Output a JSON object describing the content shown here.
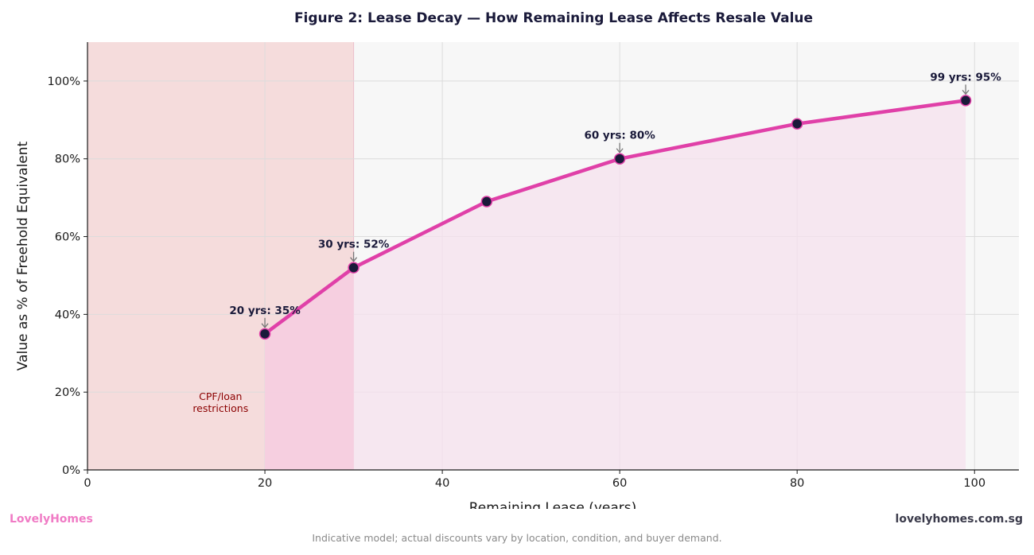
{
  "chart_data": {
    "type": "line",
    "title": "Figure 2: Lease Decay — How Remaining Lease Affects Resale Value",
    "xlabel": "Remaining Lease (years)",
    "ylabel": "Value as % of Freehold Equivalent",
    "xlim": [
      0,
      105
    ],
    "ylim": [
      0,
      110
    ],
    "x_ticks": [
      0,
      20,
      40,
      60,
      80,
      100
    ],
    "y_ticks": [
      0,
      20,
      40,
      60,
      80,
      100
    ],
    "y_tick_labels": [
      "0%",
      "20%",
      "40%",
      "60%",
      "80%",
      "100%"
    ],
    "grid": true,
    "series": [
      {
        "x": [
          20,
          30,
          45,
          60,
          80,
          99
        ],
        "values": [
          35,
          52,
          69,
          80,
          89,
          95
        ]
      }
    ],
    "annotations": [
      {
        "text": "20 yrs: 35%",
        "x": 20,
        "y": 35
      },
      {
        "text": "30 yrs: 52%",
        "x": 30,
        "y": 52
      },
      {
        "text": "60 yrs: 80%",
        "x": 60,
        "y": 80
      },
      {
        "text": "99 yrs: 95%",
        "x": 99,
        "y": 95
      }
    ],
    "shaded_region": {
      "x_start": 0,
      "x_end": 30,
      "label_lines": [
        "CPF/loan",
        "restrictions"
      ]
    },
    "colors": {
      "line": "#e040a8",
      "marker": "#1a1a3a",
      "region": "#f4dada",
      "fill": "#f5e2ee",
      "plot_bg": "#f7f7f7"
    }
  },
  "footer": {
    "brand": "LovelyHomes",
    "site": "lovelyhomes.com.sg",
    "note": "Indicative model; actual discounts vary by location, condition, and buyer demand."
  }
}
